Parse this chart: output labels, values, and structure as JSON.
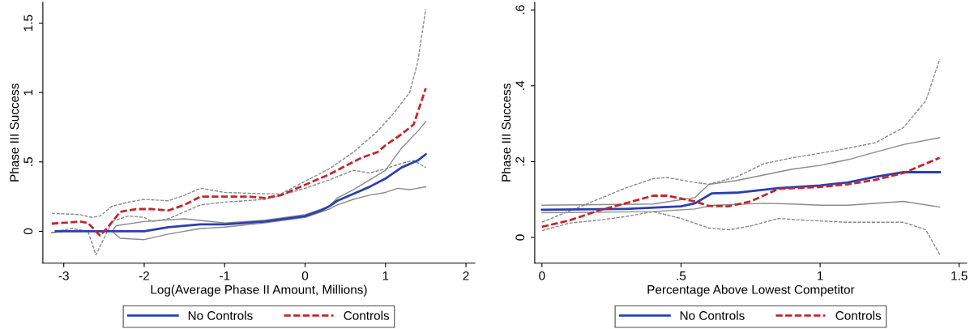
{
  "chart_data": [
    {
      "type": "line",
      "xlabel": "Log(Average Phase II Amount, Millions)",
      "ylabel": "Phase III Success",
      "xlim": [
        -3.26,
        2.11
      ],
      "ylim": [
        -0.23,
        1.65
      ],
      "xticks": [
        -3,
        -2,
        -1,
        0,
        1,
        2
      ],
      "yticks": [
        0,
        {
          "value": 0.5,
          "label": ".5"
        },
        1,
        1.5
      ],
      "grid": false,
      "legend": "bottom",
      "series": [
        {
          "color": "#8a8a8a",
          "line_style": "solid",
          "x": [
            -3.15,
            -3.0,
            -2.4,
            -2.35,
            -2.0,
            -1.5,
            -1.0,
            -0.5,
            0,
            0.3,
            0.4,
            0.6,
            0.8,
            1.0,
            1.2,
            1.4,
            1.5
          ],
          "values": [
            -0.01,
            0,
            0,
            0.04,
            0.07,
            0.09,
            0.06,
            0.08,
            0.12,
            0.18,
            0.24,
            0.3,
            0.37,
            0.44,
            0.6,
            0.72,
            0.79
          ]
        },
        {
          "color": "#8a8a8a",
          "line_style": "solid",
          "x": [
            -3.15,
            -3.0,
            -2.4,
            -2.3,
            -2.0,
            -1.7,
            -1.3,
            -1.0,
            -0.5,
            0,
            0.3,
            0.4,
            0.6,
            0.8,
            1.0,
            1.15,
            1.3,
            1.5
          ],
          "values": [
            -0.01,
            0,
            0,
            -0.05,
            -0.06,
            -0.02,
            0.02,
            0.03,
            0.06,
            0.1,
            0.16,
            0.19,
            0.23,
            0.26,
            0.28,
            0.31,
            0.3,
            0.32
          ]
        },
        {
          "color": "#8a8a8a",
          "line_style": "dashed",
          "x": [
            -3.15,
            -2.8,
            -2.65,
            -2.55,
            -2.4,
            -2.2,
            -2.0,
            -1.7,
            -1.5,
            -1.3,
            -1.0,
            -0.5,
            -0.3,
            0,
            0.3,
            0.6,
            0.9,
            1.1,
            1.3,
            1.4,
            1.5
          ],
          "values": [
            0.13,
            0.12,
            0.1,
            0.11,
            0.18,
            0.21,
            0.23,
            0.22,
            0.26,
            0.31,
            0.28,
            0.27,
            0.27,
            0.36,
            0.45,
            0.57,
            0.72,
            0.85,
            1.0,
            1.22,
            1.6
          ]
        },
        {
          "color": "#8a8a8a",
          "line_style": "dashed",
          "x": [
            -3.1,
            -2.9,
            -2.7,
            -2.6,
            -2.5,
            -2.4,
            -2.2,
            -2.0,
            -1.9,
            -1.7,
            -1.3,
            -1.0,
            -0.5,
            -0.3,
            0,
            0.3,
            0.6,
            0.8,
            1.0,
            1.2,
            1.35,
            1.5
          ],
          "values": [
            0.0,
            0.02,
            0.0,
            -0.17,
            -0.05,
            0.07,
            0.11,
            0.1,
            0.07,
            0.09,
            0.19,
            0.21,
            0.23,
            0.26,
            0.31,
            0.37,
            0.44,
            0.42,
            0.45,
            0.49,
            0.51,
            0.46
          ]
        },
        {
          "name": "No Controls",
          "color": "#2b3fae",
          "line_style": "solid",
          "x": [
            -3.1,
            -2.4,
            -2.0,
            -1.7,
            -1.3,
            -1.0,
            -0.5,
            0,
            0.2,
            0.3,
            0.4,
            0.6,
            0.8,
            1.0,
            1.2,
            1.4,
            1.5
          ],
          "values": [
            0,
            0,
            0,
            0.03,
            0.05,
            0.05,
            0.07,
            0.11,
            0.15,
            0.18,
            0.22,
            0.27,
            0.32,
            0.38,
            0.46,
            0.51,
            0.555
          ]
        },
        {
          "name": "Controls",
          "color": "#c0282d",
          "line_style": "dashed",
          "x": [
            -3.15,
            -2.8,
            -2.7,
            -2.6,
            -2.55,
            -2.45,
            -2.3,
            -2.1,
            -1.9,
            -1.7,
            -1.5,
            -1.3,
            -1.0,
            -0.7,
            -0.5,
            -0.3,
            -0.1,
            0.1,
            0.3,
            0.5,
            0.7,
            0.9,
            1.0,
            1.2,
            1.35,
            1.5
          ],
          "values": [
            0.055,
            0.07,
            0.06,
            0.0,
            -0.03,
            0.03,
            0.14,
            0.16,
            0.16,
            0.15,
            0.19,
            0.25,
            0.25,
            0.25,
            0.24,
            0.26,
            0.31,
            0.36,
            0.41,
            0.47,
            0.53,
            0.57,
            0.62,
            0.7,
            0.77,
            1.03
          ]
        }
      ]
    },
    {
      "type": "line",
      "xlabel": "Percentage Above Lowest Competitor",
      "ylabel": "Phase III Success",
      "xlim": [
        -0.026,
        1.527
      ],
      "ylim": [
        -0.068,
        0.62
      ],
      "xticks": [
        0,
        {
          "value": 0.5,
          "label": ".5"
        },
        1,
        1.5
      ],
      "yticks": [
        0,
        {
          "value": 0.2,
          "label": ".2"
        },
        {
          "value": 0.4,
          "label": ".4"
        },
        {
          "value": 0.6,
          "label": ".6"
        }
      ],
      "grid": false,
      "legend": "bottom",
      "series": [
        {
          "color": "#8a8a8a",
          "line_style": "solid",
          "x": [
            0,
            0.4,
            0.55,
            0.6,
            0.7,
            0.8,
            0.9,
            1.0,
            1.1,
            1.2,
            1.3,
            1.43
          ],
          "values": [
            0.085,
            0.088,
            0.105,
            0.14,
            0.15,
            0.165,
            0.18,
            0.19,
            0.205,
            0.225,
            0.245,
            0.263
          ]
        },
        {
          "color": "#8a8a8a",
          "line_style": "solid",
          "x": [
            0,
            0.4,
            0.55,
            0.62,
            0.8,
            0.9,
            1.0,
            1.1,
            1.3,
            1.43
          ],
          "values": [
            0.065,
            0.068,
            0.075,
            0.085,
            0.09,
            0.088,
            0.085,
            0.085,
            0.095,
            0.08
          ]
        },
        {
          "color": "#8a8a8a",
          "line_style": "dashed",
          "x": [
            0,
            0.1,
            0.2,
            0.3,
            0.4,
            0.45,
            0.55,
            0.6,
            0.7,
            0.8,
            0.9,
            1.0,
            1.1,
            1.2,
            1.3,
            1.38,
            1.43
          ],
          "values": [
            0.04,
            0.07,
            0.1,
            0.13,
            0.155,
            0.158,
            0.145,
            0.14,
            0.16,
            0.195,
            0.21,
            0.222,
            0.235,
            0.25,
            0.29,
            0.36,
            0.47
          ]
        },
        {
          "color": "#8a8a8a",
          "line_style": "dashed",
          "x": [
            0,
            0.1,
            0.2,
            0.3,
            0.4,
            0.5,
            0.6,
            0.67,
            0.75,
            0.85,
            0.95,
            1.1,
            1.2,
            1.3,
            1.38,
            1.43
          ],
          "values": [
            0.018,
            0.038,
            0.045,
            0.055,
            0.068,
            0.05,
            0.025,
            0.02,
            0.03,
            0.05,
            0.045,
            0.04,
            0.04,
            0.04,
            0.02,
            -0.045
          ]
        },
        {
          "name": "No Controls",
          "color": "#2b3fae",
          "line_style": "solid",
          "x": [
            0,
            0.3,
            0.5,
            0.55,
            0.61,
            0.7,
            0.85,
            1.0,
            1.1,
            1.2,
            1.3,
            1.43
          ],
          "values": [
            0.073,
            0.075,
            0.082,
            0.09,
            0.116,
            0.118,
            0.13,
            0.137,
            0.145,
            0.16,
            0.172,
            0.172
          ]
        },
        {
          "name": "Controls",
          "color": "#c0282d",
          "line_style": "dashed",
          "x": [
            0,
            0.1,
            0.2,
            0.3,
            0.4,
            0.45,
            0.55,
            0.6,
            0.67,
            0.75,
            0.85,
            1.0,
            1.1,
            1.2,
            1.3,
            1.43
          ],
          "values": [
            0.028,
            0.045,
            0.07,
            0.09,
            0.11,
            0.11,
            0.095,
            0.083,
            0.082,
            0.095,
            0.128,
            0.133,
            0.14,
            0.152,
            0.17,
            0.21
          ]
        }
      ]
    }
  ]
}
